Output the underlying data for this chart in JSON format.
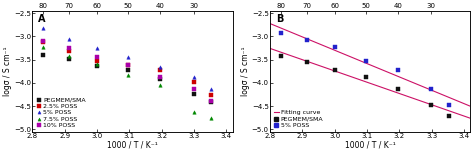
{
  "panel_A": {
    "title": "A",
    "xlabel": "1000 / T / K⁻¹",
    "ylabel": "logσ / S cm⁻¹",
    "top_ticks": [
      80,
      70,
      60,
      50,
      40,
      30
    ],
    "top_tick_pos": [
      2.833,
      2.914,
      3.0,
      3.096,
      3.195,
      3.299
    ],
    "xlim": [
      2.8,
      3.42
    ],
    "ylim": [
      -5.05,
      -2.45
    ],
    "yticks": [
      -5.0,
      -4.5,
      -4.0,
      -3.5,
      -3.0,
      -2.5
    ],
    "xticks": [
      2.8,
      2.9,
      3.0,
      3.1,
      3.2,
      3.3,
      3.4
    ],
    "series": [
      {
        "label": "PEGMEM/SMA",
        "color": "#111111",
        "marker": "s",
        "x": [
          2.833,
          2.914,
          3.0,
          3.096,
          3.195,
          3.299,
          3.354
        ],
        "y": [
          -3.4,
          -3.48,
          -3.63,
          -3.72,
          -3.92,
          -4.23,
          -4.42
        ]
      },
      {
        "label": "2.5% POSS",
        "color": "#cc0000",
        "marker": "s",
        "x": [
          2.833,
          2.914,
          3.0,
          3.096,
          3.195,
          3.299,
          3.354
        ],
        "y": [
          -3.12,
          -3.32,
          -3.53,
          -3.62,
          -3.73,
          -3.97,
          -4.27
        ]
      },
      {
        "label": "5% POSS",
        "color": "#2222cc",
        "marker": "^",
        "x": [
          2.833,
          2.914,
          3.0,
          3.096,
          3.195,
          3.299,
          3.354
        ],
        "y": [
          -2.82,
          -3.06,
          -3.24,
          -3.45,
          -3.65,
          -3.87,
          -4.12
        ]
      },
      {
        "label": "7.5% POSS",
        "color": "#008800",
        "marker": "^",
        "x": [
          2.833,
          2.914,
          3.0,
          3.096,
          3.195,
          3.299,
          3.354
        ],
        "y": [
          -3.22,
          -3.43,
          -3.6,
          -3.82,
          -4.05,
          -4.62,
          -4.75
        ]
      },
      {
        "label": "10% POSS",
        "color": "#aa00aa",
        "marker": "s",
        "x": [
          2.833,
          2.914,
          3.0,
          3.096,
          3.195,
          3.299,
          3.354
        ],
        "y": [
          -3.1,
          -3.25,
          -3.44,
          -3.62,
          -3.87,
          -4.12,
          -4.38
        ]
      }
    ]
  },
  "panel_B": {
    "title": "B",
    "xlabel": "1000 / T / K⁻¹",
    "ylabel": "logσ / S cm⁻¹",
    "top_ticks": [
      80,
      70,
      60,
      50,
      40,
      30
    ],
    "top_tick_pos": [
      2.833,
      2.914,
      3.0,
      3.096,
      3.195,
      3.299
    ],
    "xlim": [
      2.8,
      3.42
    ],
    "ylim": [
      -5.05,
      -2.45
    ],
    "yticks": [
      -5.0,
      -4.5,
      -4.0,
      -3.5,
      -3.0,
      -2.5
    ],
    "xticks": [
      2.8,
      2.9,
      3.0,
      3.1,
      3.2,
      3.3,
      3.4
    ],
    "series": [
      {
        "label": "PEGMEM/SMA",
        "color": "#111111",
        "marker": "s",
        "x": [
          2.833,
          2.914,
          3.0,
          3.096,
          3.195,
          3.299,
          3.354
        ],
        "y": [
          -3.42,
          -3.55,
          -3.72,
          -3.87,
          -4.12,
          -4.47,
          -4.72
        ]
      },
      {
        "label": "5% POSS",
        "color": "#2222cc",
        "marker": "s",
        "x": [
          2.833,
          2.914,
          3.0,
          3.096,
          3.195,
          3.299,
          3.354
        ],
        "y": [
          -2.92,
          -3.07,
          -3.22,
          -3.53,
          -3.72,
          -4.12,
          -4.48
        ]
      }
    ],
    "fit_color": "#cc1166",
    "fit_label": "Fitting curve"
  },
  "background_color": "#ffffff",
  "tick_fontsize": 5.0,
  "label_fontsize": 5.5,
  "legend_fontsize": 4.5,
  "title_fontsize": 7.0,
  "marker_size": 2.5,
  "marker_edge_width": 0.3
}
